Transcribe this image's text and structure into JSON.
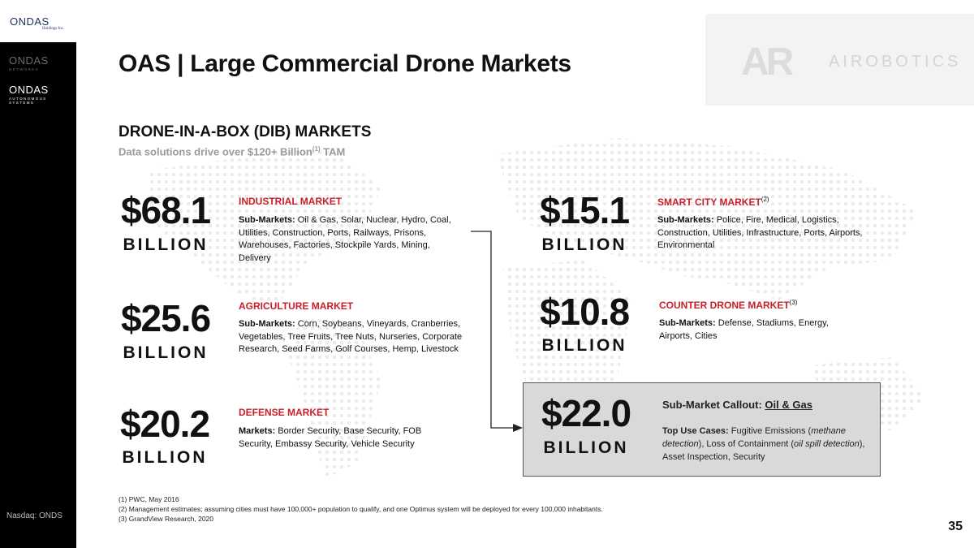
{
  "company_logo": {
    "word": "ONDAS",
    "sub": "Holdings Inc."
  },
  "sidebar": {
    "logos": [
      {
        "word": "ONDAS",
        "sub": "NETWORKS"
      },
      {
        "word": "ONDAS",
        "sub": "AUTONOMOUS SYSTEMS"
      }
    ],
    "ticker": "Nasdaq: ONDS"
  },
  "header": {
    "title": "OAS | Large Commercial Drone Markets",
    "brand_mark": "AR",
    "brand_name": "AIROBOTICS"
  },
  "section": {
    "title": "DRONE-IN-A-BOX (DIB) MARKETS",
    "subtitle": "Data solutions drive over $120+ Billion",
    "subtitle_sup": "(1)",
    "subtitle_end": " TAM"
  },
  "markets": {
    "industrial": {
      "value": "$68.1",
      "unit": "BILLION",
      "title": "INDUSTRIAL MARKET",
      "label": "Sub-Markets:",
      "text": " Oil & Gas, Solar, Nuclear, Hydro, Coal, Utilities, Construction, Ports, Railways, Prisons, Warehouses, Factories, Stockpile Yards, Mining, Delivery"
    },
    "agriculture": {
      "value": "$25.6",
      "unit": "BILLION",
      "title": "AGRICULTURE MARKET",
      "label": "Sub-Markets:",
      "text": " Corn, Soybeans, Vineyards, Cranberries, Vegetables, Tree Fruits, Tree Nuts, Nurseries, Corporate Research, Seed Farms, Golf Courses, Hemp, Livestock"
    },
    "defense": {
      "value": "$20.2",
      "unit": "BILLION",
      "title": "DEFENSE MARKET",
      "label": "Markets:",
      "text": " Border Security, Base Security, FOB Security, Embassy Security, Vehicle Security"
    },
    "smart_city": {
      "value": "$15.1",
      "unit": "BILLION",
      "title": "SMART CITY MARKET",
      "sup": "(2)",
      "label": "Sub-Markets:",
      "text": " Police, Fire, Medical, Logistics, Construction, Utilities, Infrastructure, Ports, Airports, Environmental"
    },
    "counter_drone": {
      "value": "$10.8",
      "unit": "BILLION",
      "title": "COUNTER DRONE MARKET",
      "sup": "(3)",
      "label": "Sub-Markets:",
      "text": " Defense, Stadiums, Energy, Airports, Cities"
    }
  },
  "callout": {
    "value": "$22.0",
    "unit": "BILLION",
    "head_label": "Sub-Market Callout: ",
    "head_value": "Oil & Gas",
    "uses_label": "Top Use Cases:",
    "uses_1": " Fugitive Emissions (",
    "uses_2": "methane detection",
    "uses_3": "), Loss of Containment (",
    "uses_4": "oil spill detection",
    "uses_5": "), Asset Inspection, Security"
  },
  "footnotes": [
    "(1) PWC, May 2016",
    "(2) Management estimates; assuming cities must have 100,000+ population to qualify, and one Optimus system will be deployed for every 100,000 inhabitants.",
    "(3) GrandView Research, 2020"
  ],
  "page_number": "35",
  "colors": {
    "accent_red": "#c8202a",
    "sidebar": "#000000",
    "callout_bg": "#d9d9d9"
  }
}
